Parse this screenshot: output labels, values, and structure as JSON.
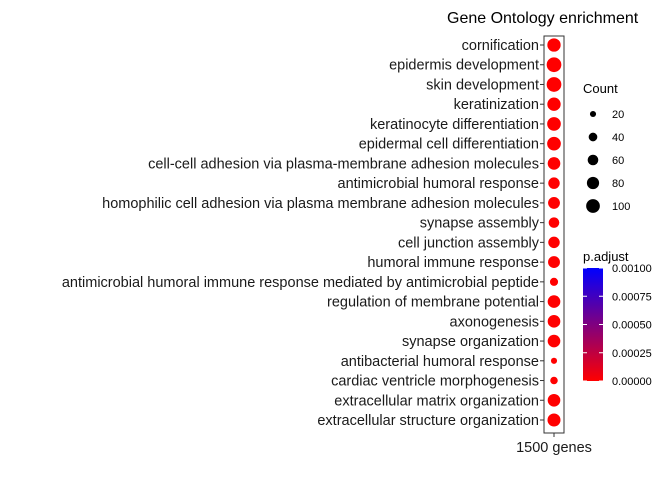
{
  "chart_data": {
    "type": "scatter",
    "title": "Gene Ontology enrichment",
    "x_categories": [
      "1500 genes"
    ],
    "terms": [
      "cornification",
      "epidermis development",
      "skin development",
      "keratinization",
      "keratinocyte differentiation",
      "epidermal cell differentiation",
      "cell-cell adhesion via plasma-membrane adhesion molecules",
      "antimicrobial humoral response",
      "homophilic cell adhesion via plasma membrane adhesion molecules",
      "synapse assembly",
      "cell junction assembly",
      "humoral immune response",
      "antimicrobial humoral immune response mediated by antimicrobial peptide",
      "regulation of membrane potential",
      "axonogenesis",
      "synapse organization",
      "antibacterial humoral response",
      "cardiac ventricle morphogenesis",
      "extracellular matrix organization",
      "extracellular structure organization"
    ],
    "counts": [
      95,
      115,
      115,
      95,
      100,
      100,
      85,
      70,
      75,
      60,
      70,
      75,
      35,
      85,
      85,
      85,
      20,
      30,
      85,
      90
    ],
    "p_adjust": [
      1e-06,
      1e-06,
      1e-06,
      1e-06,
      1e-06,
      1e-06,
      1e-06,
      1e-06,
      1e-06,
      1e-06,
      1e-06,
      1e-06,
      1e-06,
      1e-06,
      1e-06,
      1e-06,
      1e-06,
      1e-06,
      1e-06,
      1e-06
    ],
    "size_legend": {
      "title": "Count",
      "breaks": [
        20,
        40,
        60,
        80,
        100
      ],
      "labels": [
        "20",
        "40",
        "60",
        "80",
        "100"
      ]
    },
    "color_legend": {
      "title": "p.adjust",
      "low_color": "#ff0000",
      "high_color": "#0000ff",
      "breaks": [
        0.0,
        0.00025,
        0.0005,
        0.00075,
        0.001
      ],
      "labels": [
        "0.00000",
        "0.00025",
        "0.00050",
        "0.00075",
        "0.00100"
      ]
    },
    "grid": false
  }
}
